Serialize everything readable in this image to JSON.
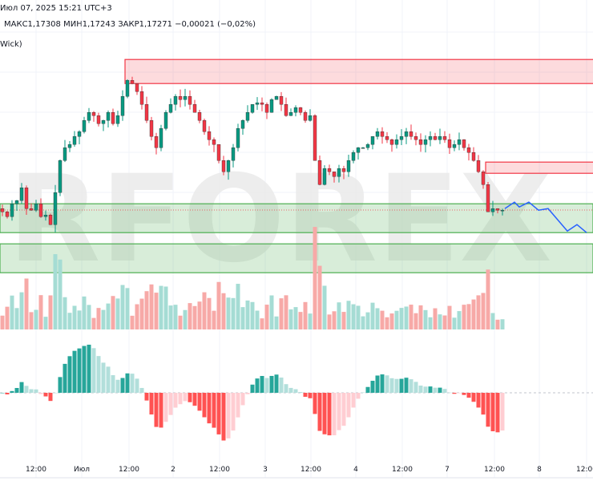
{
  "header": {
    "datetime": "Июл 07, 2025 15:21 UTC+3",
    "ohlc": "МАКС1,17308  МИН1,17243  ЗАКР1,17271  −0,00021 (−0,02%)",
    "indicator": "Wick)"
  },
  "watermark": "RFOREX",
  "colors": {
    "up": "#089981",
    "down": "#f23645",
    "up_light": "#a5dcd4",
    "down_light": "#f7a9a7",
    "macd_up": "#26a69a",
    "macd_up_light": "#b2dfdb",
    "macd_down": "#ff5252",
    "macd_down_light": "#ffcdd2",
    "zone_red": "#f23645",
    "zone_green": "#4caf50",
    "projection": "#2962ff"
  },
  "time_axis": [
    "12:00",
    "Июл",
    "12:00",
    "2",
    "12:00",
    "3",
    "12:00",
    "4",
    "12:00",
    "7",
    "12:00",
    "8",
    "12:00"
  ],
  "price": {
    "last": 1.17271,
    "closes": [
      1.1726,
      1.1723,
      1.1731,
      1.1733,
      1.1741,
      1.1728,
      1.1727,
      1.1731,
      1.1723,
      1.1724,
      1.1718,
      1.1738,
      1.1758,
      1.1766,
      1.1768,
      1.1773,
      1.1776,
      1.1783,
      1.1788,
      1.1786,
      1.1781,
      1.1783,
      1.1788,
      1.1781,
      1.1786,
      1.1798,
      1.1808,
      1.1806,
      1.1801,
      1.1793,
      1.1783,
      1.1773,
      1.1766,
      1.1778,
      1.1788,
      1.1793,
      1.1798,
      1.1796,
      1.1798,
      1.1793,
      1.1788,
      1.1783,
      1.1776,
      1.1771,
      1.1768,
      1.1758,
      1.1751,
      1.1758,
      1.1766,
      1.1778,
      1.1783,
      1.1788,
      1.1793,
      1.1794,
      1.1793,
      1.1788,
      1.1796,
      1.1798,
      1.1793,
      1.1786,
      1.1788,
      1.1791,
      1.1788,
      1.1783,
      1.1786,
      1.1758,
      1.1743,
      1.1753,
      1.1751,
      1.1748,
      1.1753,
      1.1751,
      1.1758,
      1.1763,
      1.1766,
      1.1766,
      1.1768,
      1.1773,
      1.1776,
      1.1773,
      1.1771,
      1.1768,
      1.1771,
      1.1773,
      1.1776,
      1.1773,
      1.1771,
      1.1768,
      1.1771,
      1.1773,
      1.1771,
      1.1773,
      1.1771,
      1.1766,
      1.1768,
      1.1771,
      1.1766,
      1.1763,
      1.1758,
      1.1751,
      1.1743,
      1.1726,
      1.1728,
      1.1727,
      1.1727
    ]
  },
  "zones": [
    {
      "type": "supply",
      "from": 1.1806,
      "to": 1.1821,
      "start_bar": 26
    },
    {
      "type": "supply",
      "from": 1.175,
      "to": 1.1757,
      "start_bar": 101
    },
    {
      "type": "demand",
      "from": 1.1713,
      "to": 1.1731,
      "start_bar": 0
    },
    {
      "type": "demand",
      "from": 1.1688,
      "to": 1.1706,
      "start_bar": 0
    }
  ],
  "projection": [
    {
      "bar": 0,
      "price": 1.1728
    },
    {
      "bar": 2,
      "price": 1.1732
    },
    {
      "bar": 3,
      "price": 1.1729
    },
    {
      "bar": 5,
      "price": 1.1732
    },
    {
      "bar": 7,
      "price": 1.1727
    },
    {
      "bar": 9,
      "price": 1.1728
    },
    {
      "bar": 13,
      "price": 1.1714
    },
    {
      "bar": 15,
      "price": 1.1718
    },
    {
      "bar": 17,
      "price": 1.1713
    }
  ]
}
